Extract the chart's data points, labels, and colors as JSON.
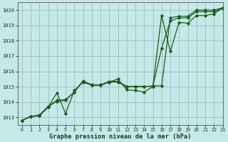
{
  "title": "Graphe pression niveau de la mer (hPa)",
  "background_color": "#c5e8e8",
  "grid_color": "#9abfbf",
  "line_color": "#1a5c1a",
  "xlim": [
    -0.5,
    23
  ],
  "ylim": [
    1012.5,
    1020.5
  ],
  "yticks": [
    1013,
    1014,
    1015,
    1016,
    1017,
    1018,
    1019,
    1020
  ],
  "xticks": [
    0,
    1,
    2,
    3,
    4,
    5,
    6,
    7,
    8,
    9,
    10,
    11,
    12,
    13,
    14,
    15,
    16,
    17,
    18,
    19,
    20,
    21,
    22,
    23
  ],
  "series1_x": [
    0,
    1,
    2,
    3,
    4,
    5,
    6,
    7,
    8,
    9,
    10,
    11,
    12,
    13,
    14,
    15,
    16,
    17,
    18,
    19,
    20,
    21,
    22,
    23
  ],
  "series1_y": [
    1012.8,
    1013.05,
    1013.1,
    1013.65,
    1014.6,
    1013.25,
    1014.75,
    1015.3,
    1015.1,
    1015.1,
    1015.3,
    1015.5,
    1014.8,
    1014.75,
    1014.65,
    1015.0,
    1019.65,
    1017.3,
    1019.2,
    1019.15,
    1019.65,
    1019.65,
    1019.75,
    1020.15
  ],
  "series2_x": [
    0,
    1,
    2,
    3,
    4,
    5,
    6,
    7,
    8,
    9,
    10,
    11,
    12,
    13,
    14,
    15,
    16,
    17,
    18,
    19,
    20,
    21,
    22,
    23
  ],
  "series2_y": [
    1012.8,
    1013.05,
    1013.15,
    1013.7,
    1014.05,
    1014.1,
    1014.65,
    1015.35,
    1015.1,
    1015.1,
    1015.3,
    1015.3,
    1015.0,
    1015.0,
    1015.0,
    1015.05,
    1015.05,
    1019.5,
    1019.6,
    1019.6,
    1020.0,
    1020.0,
    1020.0,
    1020.15
  ],
  "series3_x": [
    0,
    1,
    2,
    3,
    4,
    5,
    6,
    7,
    8,
    9,
    10,
    11,
    12,
    13,
    14,
    15,
    16,
    17,
    18,
    19,
    20,
    21,
    22,
    23
  ],
  "series3_y": [
    1012.8,
    1013.05,
    1013.1,
    1013.7,
    1014.1,
    1014.15,
    1014.65,
    1015.38,
    1015.12,
    1015.12,
    1015.35,
    1015.35,
    1015.02,
    1015.02,
    1015.02,
    1015.02,
    1017.5,
    1019.3,
    1019.5,
    1019.5,
    1019.9,
    1019.9,
    1019.9,
    1020.12
  ]
}
